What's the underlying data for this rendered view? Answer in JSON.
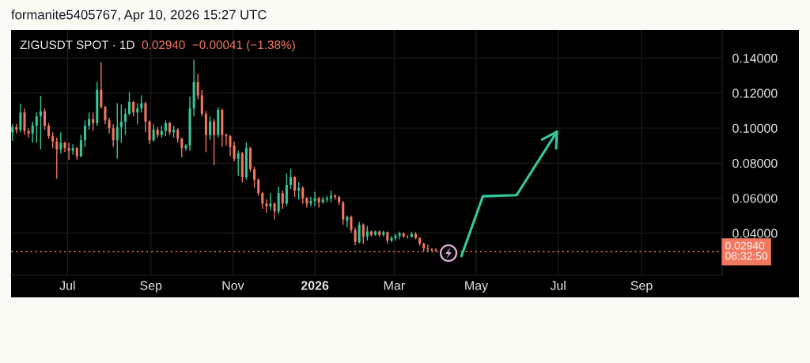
{
  "chart_data": {
    "type": "candlestick",
    "title": "ZIGUSDT SPOT · 1D",
    "subtitle": "0.02940  −0.00041 (−1.38%)",
    "annotations": [
      "formanite5405767, Apr 10, 2026 15:27 UTC"
    ],
    "x": [
      "2025-05-21",
      "2025-05-24",
      "2025-05-27",
      "2025-05-30",
      "2025-06-02",
      "2025-06-05",
      "2025-06-08",
      "2025-06-11",
      "2025-06-14",
      "2025-06-17",
      "2025-06-20",
      "2025-06-23",
      "2025-06-26",
      "2025-06-29",
      "2025-07-02",
      "2025-07-05",
      "2025-07-08",
      "2025-07-11",
      "2025-07-14",
      "2025-07-17",
      "2025-07-20",
      "2025-07-23",
      "2025-07-26",
      "2025-07-29",
      "2025-08-01",
      "2025-08-04",
      "2025-08-07",
      "2025-08-10",
      "2025-08-13",
      "2025-08-16",
      "2025-08-19",
      "2025-08-22",
      "2025-08-25",
      "2025-08-28",
      "2025-08-31",
      "2025-09-03",
      "2025-09-06",
      "2025-09-09",
      "2025-09-12",
      "2025-09-15",
      "2025-09-18",
      "2025-09-21",
      "2025-09-24",
      "2025-09-27",
      "2025-09-30",
      "2025-10-03",
      "2025-10-06",
      "2025-10-09",
      "2025-10-12",
      "2025-10-15",
      "2025-10-18",
      "2025-10-21",
      "2025-10-24",
      "2025-10-27",
      "2025-10-30",
      "2025-11-02",
      "2025-11-05",
      "2025-11-08",
      "2025-11-11",
      "2025-11-14",
      "2025-11-17",
      "2025-11-20",
      "2025-11-23",
      "2025-11-26",
      "2025-11-29",
      "2025-12-02",
      "2025-12-05",
      "2025-12-08",
      "2025-12-11",
      "2025-12-14",
      "2025-12-17",
      "2025-12-20",
      "2025-12-23",
      "2025-12-26",
      "2025-12-29",
      "2026-01-01",
      "2026-01-04",
      "2026-01-07",
      "2026-01-10",
      "2026-01-13",
      "2026-01-16",
      "2026-01-19",
      "2026-01-22",
      "2026-01-25",
      "2026-01-28",
      "2026-01-31",
      "2026-02-03",
      "2026-02-06",
      "2026-02-09",
      "2026-02-12",
      "2026-02-15",
      "2026-02-18",
      "2026-02-21",
      "2026-02-24",
      "2026-02-27",
      "2026-03-02",
      "2026-03-05",
      "2026-03-08",
      "2026-03-11",
      "2026-03-14",
      "2026-03-17",
      "2026-03-20",
      "2026-03-23",
      "2026-03-26",
      "2026-03-29",
      "2026-04-01"
    ],
    "ohlc": [
      [
        0.0976,
        0.1024,
        0.0928,
        0.1006
      ],
      [
        0.1006,
        0.1024,
        0.0969,
        0.0991
      ],
      [
        0.0991,
        0.1139,
        0.0976,
        0.1089
      ],
      [
        0.1089,
        0.1112,
        0.0961,
        0.0984
      ],
      [
        0.0984,
        0.0999,
        0.0946,
        0.0969
      ],
      [
        0.0969,
        0.1037,
        0.0916,
        0.1014
      ],
      [
        0.1014,
        0.1089,
        0.0916,
        0.1067
      ],
      [
        0.1067,
        0.1184,
        0.0878,
        0.1097
      ],
      [
        0.1097,
        0.1112,
        0.0991,
        0.1014
      ],
      [
        0.1014,
        0.1029,
        0.0939,
        0.0954
      ],
      [
        0.0954,
        0.0976,
        0.0886,
        0.0923
      ],
      [
        0.0923,
        0.0946,
        0.0712,
        0.0878
      ],
      [
        0.0878,
        0.0976,
        0.0856,
        0.0916
      ],
      [
        0.0916,
        0.0923,
        0.0863,
        0.0886
      ],
      [
        0.0886,
        0.0916,
        0.0818,
        0.0871
      ],
      [
        0.0871,
        0.0908,
        0.0848,
        0.0886
      ],
      [
        0.0886,
        0.0893,
        0.0818,
        0.084
      ],
      [
        0.084,
        0.0961,
        0.0833,
        0.0931
      ],
      [
        0.0931,
        0.1044,
        0.0893,
        0.1014
      ],
      [
        0.1014,
        0.1089,
        0.0991,
        0.1052
      ],
      [
        0.1052,
        0.1089,
        0.0984,
        0.1029
      ],
      [
        0.1029,
        0.1263,
        0.1014,
        0.1218
      ],
      [
        0.1218,
        0.1376,
        0.1112,
        0.112
      ],
      [
        0.112,
        0.1127,
        0.1021,
        0.1044
      ],
      [
        0.1044,
        0.1059,
        0.0969,
        0.0999
      ],
      [
        0.0999,
        0.1021,
        0.0893,
        0.0931
      ],
      [
        0.0931,
        0.1142,
        0.0825,
        0.1006
      ],
      [
        0.1006,
        0.1135,
        0.0916,
        0.1037
      ],
      [
        0.1037,
        0.1112,
        0.0961,
        0.1082
      ],
      [
        0.1082,
        0.1205,
        0.1074,
        0.115
      ],
      [
        0.115,
        0.1157,
        0.1067,
        0.1089
      ],
      [
        0.1089,
        0.1142,
        0.1021,
        0.1112
      ],
      [
        0.1112,
        0.1187,
        0.1089,
        0.1142
      ],
      [
        0.1142,
        0.115,
        0.0976,
        0.1037
      ],
      [
        0.1037,
        0.1044,
        0.0908,
        0.0931
      ],
      [
        0.0931,
        0.1021,
        0.0923,
        0.0991
      ],
      [
        0.0991,
        0.1006,
        0.0946,
        0.0961
      ],
      [
        0.0961,
        0.1014,
        0.0946,
        0.0984
      ],
      [
        0.0984,
        0.1044,
        0.0954,
        0.1029
      ],
      [
        0.1029,
        0.1037,
        0.0961,
        0.0976
      ],
      [
        0.0976,
        0.1014,
        0.0946,
        0.0991
      ],
      [
        0.0991,
        0.0999,
        0.0916,
        0.0939
      ],
      [
        0.0939,
        0.0946,
        0.0833,
        0.0886
      ],
      [
        0.0886,
        0.0908,
        0.0871,
        0.0901
      ],
      [
        0.0901,
        0.118,
        0.0871,
        0.1112
      ],
      [
        0.1112,
        0.1391,
        0.1067,
        0.1263
      ],
      [
        0.1263,
        0.1311,
        0.1165,
        0.1187
      ],
      [
        0.1187,
        0.1218,
        0.1067,
        0.1082
      ],
      [
        0.1082,
        0.1097,
        0.0863,
        0.0961
      ],
      [
        0.0961,
        0.1067,
        0.0931,
        0.1037
      ],
      [
        0.1037,
        0.1052,
        0.0788,
        0.0961
      ],
      [
        0.0961,
        0.112,
        0.0946,
        0.1104
      ],
      [
        0.1104,
        0.1112,
        0.0893,
        0.0961
      ],
      [
        0.0961,
        0.0969,
        0.0901,
        0.0954
      ],
      [
        0.0954,
        0.0961,
        0.084,
        0.0893
      ],
      [
        0.0901,
        0.0923,
        0.081,
        0.0825
      ],
      [
        0.0825,
        0.0871,
        0.0727,
        0.0855
      ],
      [
        0.0855,
        0.0863,
        0.069,
        0.072
      ],
      [
        0.072,
        0.0919,
        0.0705,
        0.0886
      ],
      [
        0.0886,
        0.0893,
        0.075,
        0.0765
      ],
      [
        0.0765,
        0.078,
        0.0659,
        0.0705
      ],
      [
        0.0705,
        0.0712,
        0.0614,
        0.0629
      ],
      [
        0.0629,
        0.0637,
        0.0539,
        0.0569
      ],
      [
        0.0569,
        0.0592,
        0.0516,
        0.0554
      ],
      [
        0.0554,
        0.0629,
        0.0531,
        0.0569
      ],
      [
        0.0569,
        0.0576,
        0.0478,
        0.0524
      ],
      [
        0.0524,
        0.0667,
        0.0509,
        0.0629
      ],
      [
        0.0629,
        0.0644,
        0.0539,
        0.0569
      ],
      [
        0.0569,
        0.0742,
        0.0554,
        0.0675
      ],
      [
        0.0675,
        0.0768,
        0.0652,
        0.072
      ],
      [
        0.072,
        0.0727,
        0.0607,
        0.0644
      ],
      [
        0.0644,
        0.0693,
        0.0592,
        0.0659
      ],
      [
        0.0659,
        0.0667,
        0.0569,
        0.0599
      ],
      [
        0.0599,
        0.0607,
        0.0546,
        0.0569
      ],
      [
        0.0569,
        0.0607,
        0.0554,
        0.0584
      ],
      [
        0.0584,
        0.0637,
        0.0554,
        0.0599
      ],
      [
        0.0599,
        0.0607,
        0.0546,
        0.0576
      ],
      [
        0.0576,
        0.0607,
        0.0569,
        0.0592
      ],
      [
        0.0592,
        0.0614,
        0.0576,
        0.0599
      ],
      [
        0.0599,
        0.0644,
        0.0576,
        0.0614
      ],
      [
        0.0614,
        0.0622,
        0.0592,
        0.0607
      ],
      [
        0.0607,
        0.0614,
        0.0561,
        0.0576
      ],
      [
        0.0576,
        0.0584,
        0.0448,
        0.0478
      ],
      [
        0.0471,
        0.0501,
        0.0433,
        0.0493
      ],
      [
        0.0493,
        0.0501,
        0.0403,
        0.0418
      ],
      [
        0.0418,
        0.0433,
        0.0331,
        0.035
      ],
      [
        0.035,
        0.0466,
        0.034,
        0.0448
      ],
      [
        0.0448,
        0.0456,
        0.034,
        0.038
      ],
      [
        0.038,
        0.0441,
        0.0358,
        0.041
      ],
      [
        0.041,
        0.0415,
        0.038,
        0.0391
      ],
      [
        0.0391,
        0.0415,
        0.0385,
        0.041
      ],
      [
        0.041,
        0.0415,
        0.038,
        0.0391
      ],
      [
        0.0391,
        0.0415,
        0.038,
        0.0406
      ],
      [
        0.0406,
        0.041,
        0.034,
        0.0358
      ],
      [
        0.0358,
        0.0385,
        0.0349,
        0.0373
      ],
      [
        0.0373,
        0.0395,
        0.0358,
        0.0385
      ],
      [
        0.0385,
        0.041,
        0.0365,
        0.04
      ],
      [
        0.04,
        0.0403,
        0.0373,
        0.0382
      ],
      [
        0.0382,
        0.0388,
        0.037,
        0.0379
      ],
      [
        0.0379,
        0.0408,
        0.0373,
        0.0395
      ],
      [
        0.0395,
        0.0406,
        0.0365,
        0.0373
      ],
      [
        0.0373,
        0.0376,
        0.0328,
        0.034
      ],
      [
        0.034,
        0.0346,
        0.0297,
        0.0313
      ],
      [
        0.0313,
        0.0335,
        0.0297,
        0.0308
      ],
      [
        0.0308,
        0.0313,
        0.0294,
        0.0305
      ],
      [
        0.0305,
        0.0313,
        0.0294,
        0.03
      ]
    ],
    "colors": [
      "#35c797",
      "#f2775f",
      "#35c797",
      "#f2775f",
      "#f2775f",
      "#35c797",
      "#35c797",
      "#35c797",
      "#f2775f",
      "#f2775f",
      "#f2775f",
      "#f2775f",
      "#35c797",
      "#f2775f",
      "#f2775f",
      "#35c797",
      "#f2775f",
      "#35c797",
      "#35c797",
      "#35c797",
      "#f2775f",
      "#35c797",
      "#f2775f",
      "#f2775f",
      "#f2775f",
      "#f2775f",
      "#35c797",
      "#35c797",
      "#35c797",
      "#35c797",
      "#f2775f",
      "#35c797",
      "#35c797",
      "#f2775f",
      "#f2775f",
      "#35c797",
      "#f2775f",
      "#35c797",
      "#35c797",
      "#f2775f",
      "#35c797",
      "#f2775f",
      "#f2775f",
      "#35c797",
      "#35c797",
      "#35c797",
      "#f2775f",
      "#f2775f",
      "#f2775f",
      "#35c797",
      "#f2775f",
      "#35c797",
      "#f2775f",
      "#f2775f",
      "#f2775f",
      "#f2775f",
      "#35c797",
      "#f2775f",
      "#35c797",
      "#f2775f",
      "#f2775f",
      "#f2775f",
      "#f2775f",
      "#f2775f",
      "#35c797",
      "#f2775f",
      "#35c797",
      "#f2775f",
      "#35c797",
      "#35c797",
      "#f2775f",
      "#35c797",
      "#f2775f",
      "#f2775f",
      "#35c797",
      "#35c797",
      "#f2775f",
      "#35c797",
      "#35c797",
      "#35c797",
      "#f2775f",
      "#f2775f",
      "#f2775f",
      "#35c797",
      "#f2775f",
      "#f2775f",
      "#35c797",
      "#f2775f",
      "#35c797",
      "#f2775f",
      "#35c797",
      "#f2775f",
      "#35c797",
      "#f2775f",
      "#35c797",
      "#35c797",
      "#35c797",
      "#f2775f",
      "#f2775f",
      "#35c797",
      "#f2775f",
      "#f2775f",
      "#f2775f",
      "#f2775f",
      "#f2775f",
      "#f2775f"
    ],
    "series": [
      {
        "type": "line",
        "color": "#36c89d",
        "x": [
          "2026-04-20",
          "2026-05-06",
          "2026-05-31",
          "2026-06-30"
        ],
        "values": [
          0.0269,
          0.0611,
          0.0617,
          0.0979
        ]
      }
    ],
    "ref_lines": [
      {
        "axis": "y",
        "value": 0.0294,
        "label": "0.02940\n08:32:50",
        "color": "#f2775f",
        "line_style": "dotted"
      }
    ],
    "xlim": [
      "2025-05-20",
      "2026-10-31"
    ],
    "xticks": [
      {
        "value": "2025-07-01",
        "label": "Jul"
      },
      {
        "value": "2025-09-01",
        "label": "Sep"
      },
      {
        "value": "2025-11-01",
        "label": "Nov"
      },
      {
        "value": "2026-01-01",
        "label": "2026"
      },
      {
        "value": "2026-03-01",
        "label": "Mar"
      },
      {
        "value": "2026-05-01",
        "label": "May"
      },
      {
        "value": "2026-07-01",
        "label": "Jul"
      },
      {
        "value": "2026-09-01",
        "label": "Sep"
      }
    ],
    "ylim": [
      0.016,
      0.156
    ],
    "yticks": [
      {
        "value": 0.04,
        "label": "0.04000"
      },
      {
        "value": 0.06,
        "label": "0.06000"
      },
      {
        "value": 0.08,
        "label": "0.08000"
      },
      {
        "value": 0.1,
        "label": "0.10000"
      },
      {
        "value": 0.12,
        "label": "0.12000"
      },
      {
        "value": 0.14,
        "label": "0.14000"
      }
    ],
    "grid": true
  }
}
